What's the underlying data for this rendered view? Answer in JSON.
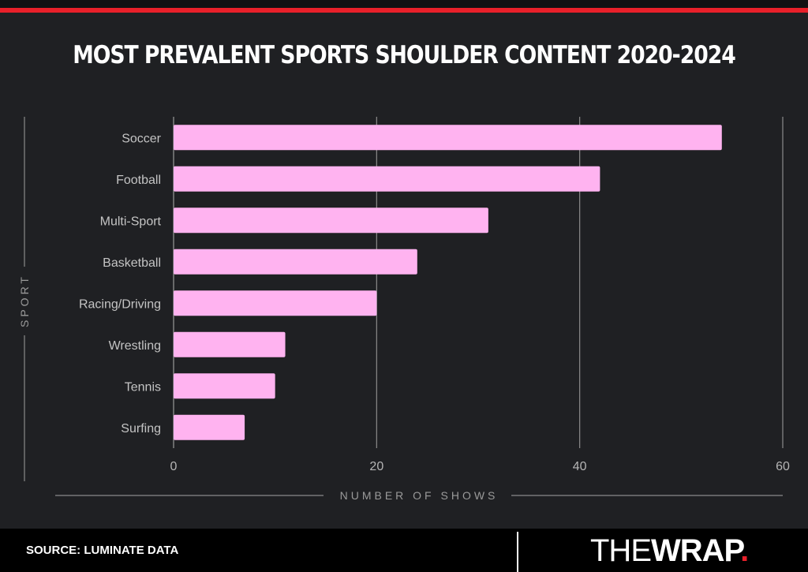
{
  "header": {
    "title": "MOST PREVALENT SPORTS SHOULDER CONTENT 2020-2024"
  },
  "chart_data": {
    "type": "bar",
    "orientation": "horizontal",
    "title": "MOST PREVALENT SPORTS SHOULDER CONTENT 2020-2024",
    "xlabel": "NUMBER OF SHOWS",
    "ylabel": "SPORT",
    "categories": [
      "Soccer",
      "Football",
      "Multi-Sport",
      "Basketball",
      "Racing/Driving",
      "Wrestling",
      "Tennis",
      "Surfing"
    ],
    "values": [
      54,
      42,
      31,
      24,
      20,
      11,
      10,
      7
    ],
    "xlim": [
      0,
      60
    ],
    "xticks": [
      0,
      20,
      40,
      60
    ],
    "grid": true,
    "bar_color": "#ffb3f0"
  },
  "footer": {
    "source": "SOURCE: LUMINATE DATA",
    "logo_thin": "THE",
    "logo_bold": "WRAP",
    "logo_dot": "."
  },
  "colors": {
    "background": "#1f2023",
    "accent": "#e8202a",
    "bar": "#ffb3f0",
    "text": "#ffffff"
  }
}
